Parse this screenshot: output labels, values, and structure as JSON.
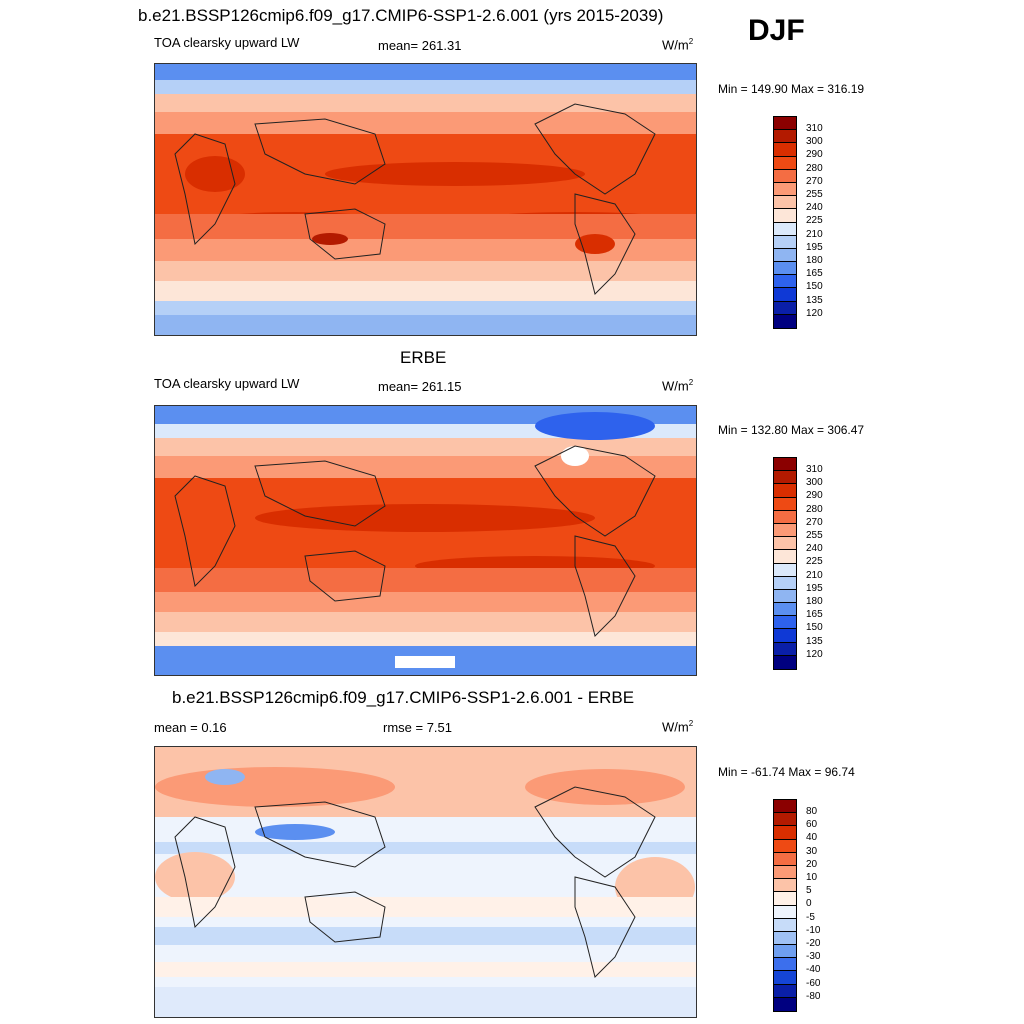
{
  "season": "DJF",
  "units_base": "W/m",
  "units_exp": "2",
  "panel1": {
    "title": "b.e21.BSSP126cmip6.f09_g17.CMIP6-SSP1-2.6.001 (yrs 2015-2039)",
    "variable": "TOA clearsky upward LW",
    "mean": "mean= 261.31",
    "minmax": "Min = 149.90 Max = 316.19"
  },
  "panel2": {
    "title": "ERBE",
    "variable": "TOA clearsky upward LW",
    "mean": "mean= 261.15",
    "minmax": "Min = 132.80 Max = 306.47"
  },
  "panel3": {
    "title": "b.e21.BSSP126cmip6.f09_g17.CMIP6-SSP1-2.6.001 - ERBE",
    "mean": "mean =   0.16",
    "rmse": "rmse =   7.51",
    "minmax": "Min = -61.74 Max =  96.74"
  },
  "colorbar_abs": {
    "labels": [
      "310",
      "300",
      "290",
      "280",
      "270",
      "255",
      "240",
      "225",
      "210",
      "195",
      "180",
      "165",
      "150",
      "135",
      "120"
    ],
    "colors": [
      "#8b0000",
      "#b31a00",
      "#d92e00",
      "#ee4a14",
      "#f46d43",
      "#fb9a76",
      "#fcc3a8",
      "#fde6d8",
      "#dbe9fb",
      "#b5d0f7",
      "#8fb5f2",
      "#5b8ff0",
      "#2e62ed",
      "#0f39d6",
      "#0a1fa8",
      "#000080"
    ]
  },
  "colorbar_diff": {
    "labels": [
      "80",
      "60",
      "40",
      "30",
      "20",
      "10",
      "5",
      "0",
      "-5",
      "-10",
      "-20",
      "-30",
      "-40",
      "-60",
      "-80"
    ],
    "colors": [
      "#8b0000",
      "#b31a00",
      "#d92e00",
      "#ee4a14",
      "#f46d43",
      "#fb9a76",
      "#fcc3a8",
      "#fff1e8",
      "#eef4fd",
      "#c7dcf9",
      "#9fc1f4",
      "#6f9ff0",
      "#3c6fed",
      "#1545d6",
      "#0a1fa8",
      "#000080"
    ]
  }
}
